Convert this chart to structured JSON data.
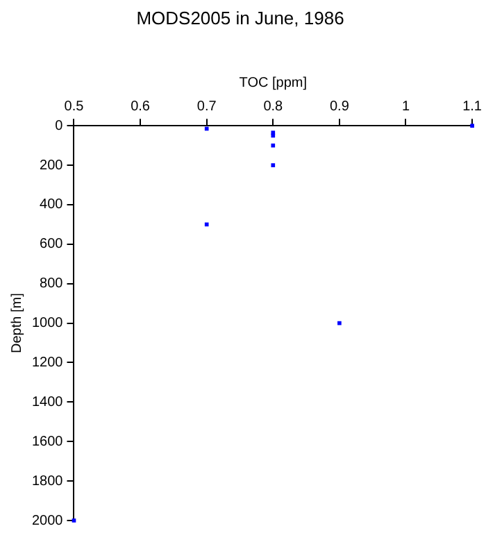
{
  "chart_data": {
    "type": "scatter",
    "title": "MODS2005 in June, 1986",
    "xlabel": "TOC [ppm]",
    "ylabel": "Depth [m]",
    "x": [
      0.7,
      1.1,
      0.8,
      0.8,
      0.8,
      0.8,
      0.7,
      0.9,
      0.5
    ],
    "series": [
      {
        "color": "#0000ff",
        "values": [
          15,
          0,
          35,
          50,
          100,
          200,
          500,
          1000,
          2000
        ]
      }
    ],
    "xlim": [
      0.5,
      1.1
    ],
    "xticks": [
      0.5,
      0.6,
      0.7,
      0.8,
      0.9,
      1,
      1.1
    ],
    "ylim": [
      2000,
      0
    ],
    "yticks": [
      0,
      200,
      400,
      600,
      800,
      1000,
      1200,
      1400,
      1600,
      1800,
      2000
    ],
    "grid": false,
    "legend": false,
    "marker": "square"
  }
}
